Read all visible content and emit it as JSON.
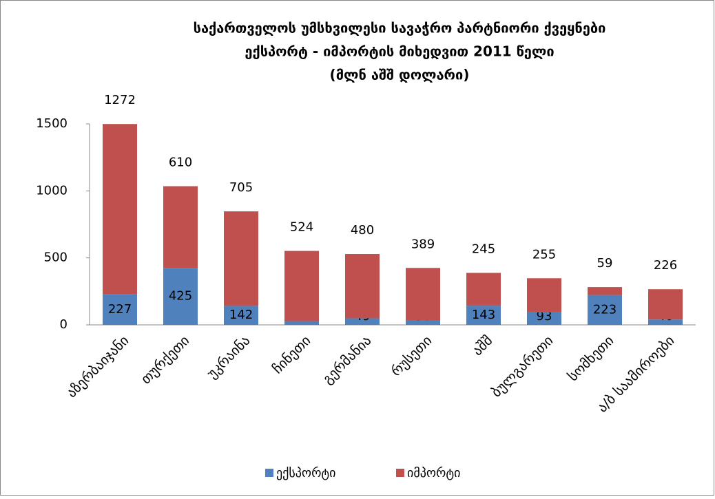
{
  "chart_data": {
    "type": "stacked_bar",
    "title": [
      "საქართველოს უმსხვილესი სავაჭრო პარტნიორი ქვეყნები",
      "ექსპორტ - იმპორტის  მიხედვით 2011 წელი",
      "(მლნ აშშ დოლარი)"
    ],
    "categories": [
      "აზერბაიჯანი",
      "თურქეთი",
      "უკრაინა",
      "ჩინეთი",
      "გერმანია",
      "რუსეთი",
      "აშშ",
      "ბულგარეთი",
      "სომხეთი",
      "ა/ბ საამიროები"
    ],
    "series": [
      {
        "name": "ექსპორტი",
        "color": "#4f81bd",
        "values": [
          227,
          425,
          142,
          28,
          49,
          36,
          143,
          93,
          223,
          40
        ]
      },
      {
        "name": "იმპორტი",
        "color": "#c0504d",
        "values": [
          1272,
          610,
          705,
          524,
          480,
          389,
          245,
          255,
          59,
          226
        ]
      }
    ],
    "ylim": [
      0,
      1500
    ],
    "yticks": [
      0,
      500,
      1000,
      1500
    ],
    "grid": false,
    "legend": "bottom"
  }
}
